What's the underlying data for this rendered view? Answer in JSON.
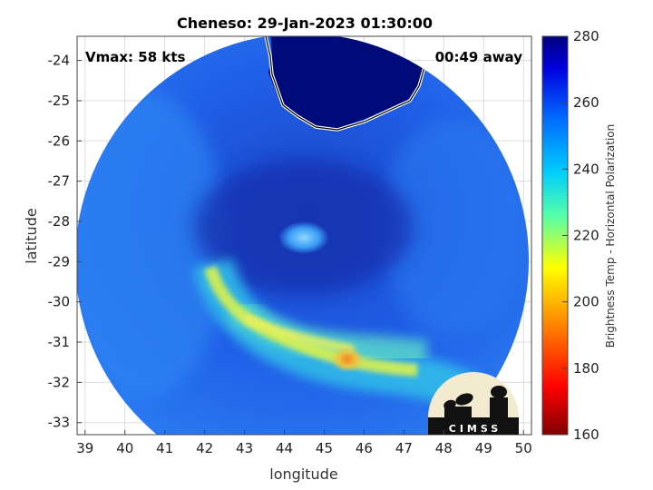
{
  "title": "Cheneso: 29-Jan-2023 01:30:00",
  "annotations": {
    "vmax": "Vmax: 58 kts",
    "away": "00:49 away"
  },
  "xaxis": {
    "label": "longitude",
    "ticks": [
      "39",
      "40",
      "41",
      "42",
      "43",
      "44",
      "45",
      "46",
      "47",
      "48",
      "49",
      "50"
    ]
  },
  "yaxis": {
    "label": "latitude",
    "ticks": [
      "-24",
      "-25",
      "-26",
      "-27",
      "-28",
      "-29",
      "-30",
      "-31",
      "-32",
      "-33"
    ]
  },
  "colorbar": {
    "label": "Brightness Temp - Horizontal Polarization",
    "ticks": [
      "280",
      "260",
      "240",
      "220",
      "200",
      "180",
      "160"
    ],
    "range": [
      160,
      280
    ]
  },
  "logo": {
    "text": "CIMSS"
  },
  "map": {
    "lon_range": [
      38.8,
      50.2
    ],
    "lat_range": [
      -33.3,
      -23.4
    ],
    "land_fill": "#000a78",
    "ocean_base": "#1f5ae6"
  }
}
